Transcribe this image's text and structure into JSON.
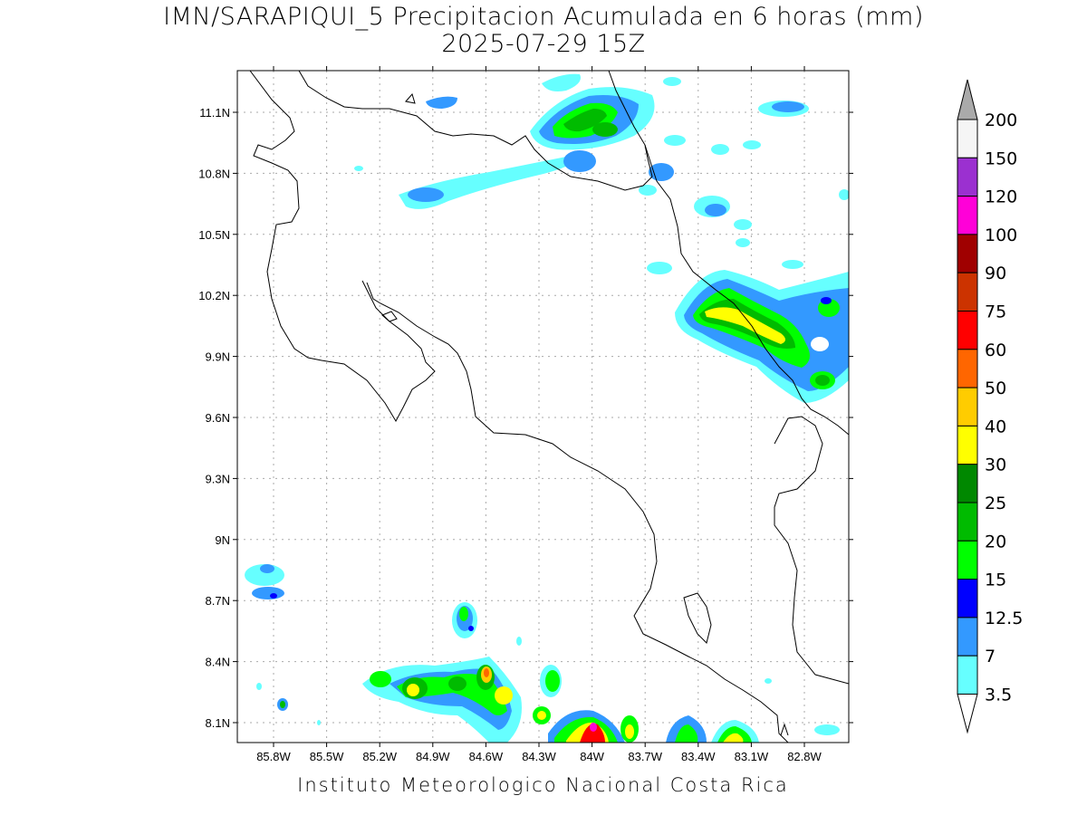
{
  "title_line1": "IMN/SARAPIQUI_5 Precipitacion Acumulada en 6 horas (mm)",
  "title_line2": "2025-07-29 15Z",
  "footer": "Instituto Meteorologico Nacional Costa Rica",
  "lat_ticks": [
    "11.1N",
    "10.8N",
    "10.5N",
    "10.2N",
    "9.9N",
    "9.6N",
    "9.3N",
    "9N",
    "8.7N",
    "8.4N",
    "8.1N"
  ],
  "lon_ticks": [
    "85.8W",
    "85.5W",
    "85.2W",
    "84.9W",
    "84.6W",
    "84.3W",
    "84W",
    "83.7W",
    "83.4W",
    "83.1W",
    "82.8W"
  ],
  "colorbar": {
    "labels": [
      "200",
      "150",
      "120",
      "100",
      "90",
      "75",
      "60",
      "50",
      "40",
      "30",
      "25",
      "20",
      "15",
      "12.5",
      "7",
      "3.5"
    ],
    "colors": [
      "#f5f5f5",
      "#9b30d0",
      "#ff00d8",
      "#a00000",
      "#cc3300",
      "#ff0000",
      "#ff6600",
      "#ffcc00",
      "#ffff00",
      "#008800",
      "#00bb00",
      "#00ff00",
      "#0000ff",
      "#3399ff",
      "#66ffff"
    ],
    "top_color": "#aaaaaa",
    "bottom_color": "#ffffff"
  }
}
